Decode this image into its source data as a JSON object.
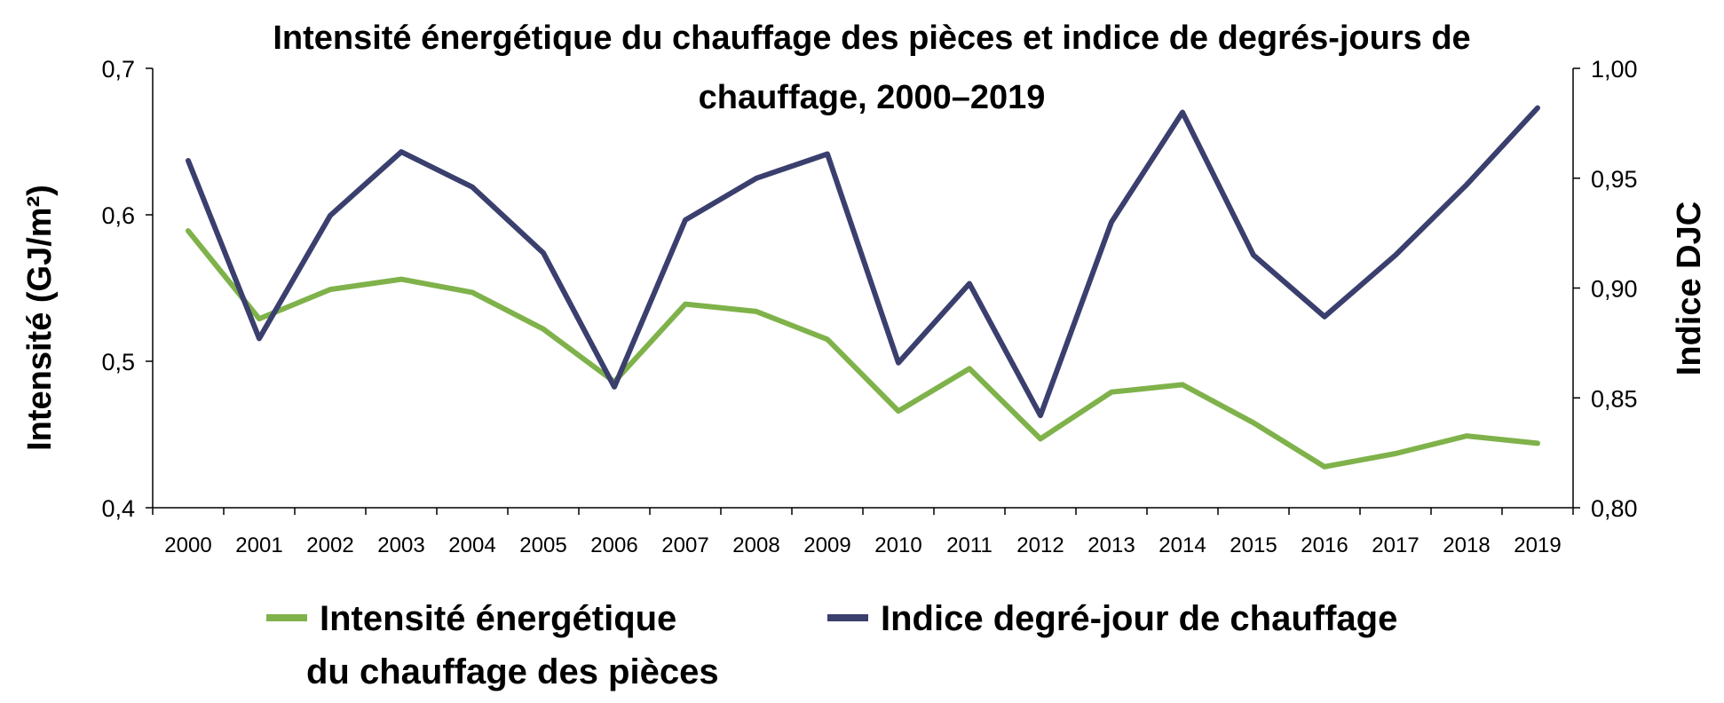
{
  "chart_data": {
    "type": "line",
    "title_line1": "Intensité énergétique du chauffage des pièces et indice de degrés-jours de",
    "title_line2": "chauffage, 2000–2019",
    "ylabel_left": "Intensité (GJ/m²)",
    "ylabel_right": "Indice DJC",
    "x": [
      "2000",
      "2001",
      "2002",
      "2003",
      "2004",
      "2005",
      "2006",
      "2007",
      "2008",
      "2009",
      "2010",
      "2011",
      "2012",
      "2013",
      "2014",
      "2015",
      "2016",
      "2017",
      "2018",
      "2019"
    ],
    "y_left_lim": [
      0.4,
      0.7
    ],
    "y_left_ticks": [
      "0,4",
      "0,5",
      "0,6",
      "0,7"
    ],
    "y_right_lim": [
      0.8,
      1.0
    ],
    "y_right_ticks": [
      "0,80",
      "0,85",
      "0,90",
      "0,95",
      "1,00"
    ],
    "grid": false,
    "legend_position": "bottom",
    "series": [
      {
        "name": "Intensité énergétique du chauffage des pièces",
        "legend_line1": "Intensité énergétique",
        "legend_line2": "du chauffage des pièces",
        "axis": "left",
        "color": "#7FB24A",
        "values": [
          0.589,
          0.529,
          0.549,
          0.556,
          0.547,
          0.522,
          0.486,
          0.539,
          0.534,
          0.515,
          0.466,
          0.495,
          0.447,
          0.479,
          0.484,
          0.458,
          0.428,
          0.437,
          0.449,
          0.444
        ]
      },
      {
        "name": "Indice degré-jour de chauffage",
        "legend_line1": "Indice degré-jour de chauffage",
        "axis": "right",
        "color": "#3A3F6E",
        "values": [
          0.958,
          0.877,
          0.933,
          0.962,
          0.946,
          0.916,
          0.855,
          0.931,
          0.95,
          0.961,
          0.866,
          0.902,
          0.842,
          0.93,
          0.98,
          0.915,
          0.887,
          0.915,
          0.947,
          0.982
        ]
      }
    ]
  }
}
